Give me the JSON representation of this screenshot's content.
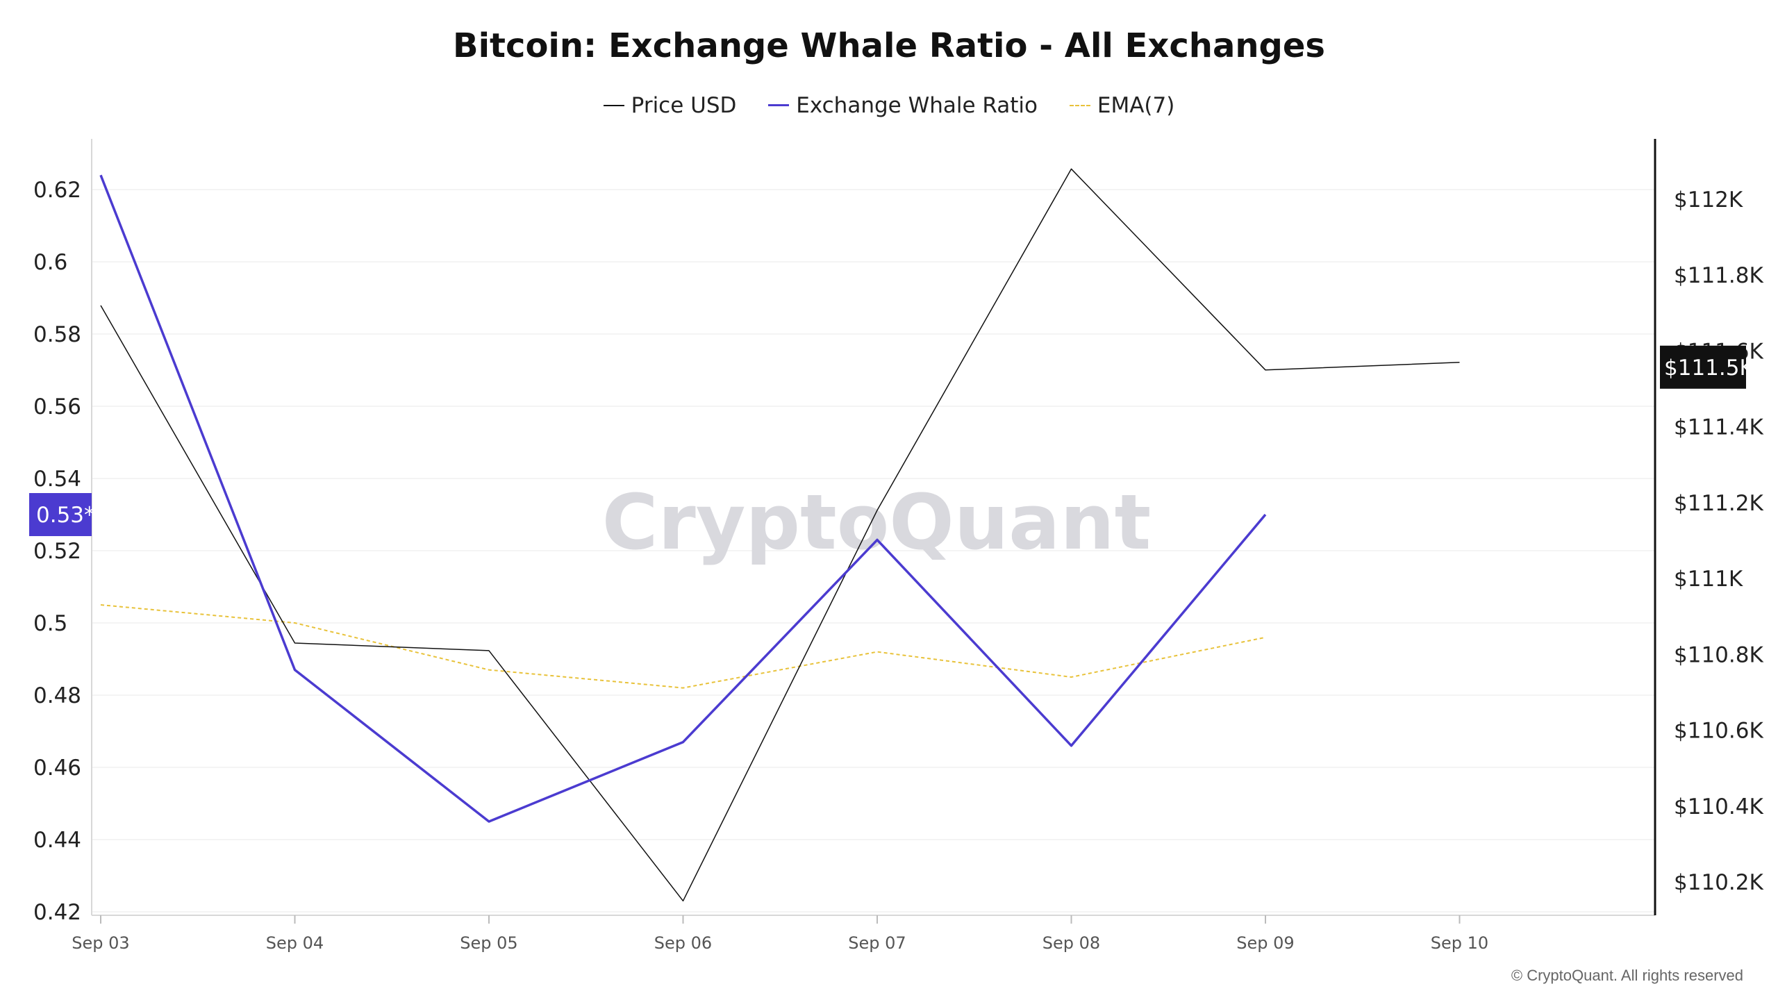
{
  "chart_data": {
    "type": "line",
    "title": "Bitcoin: Exchange Whale Ratio - All Exchanges",
    "categories": [
      "Sep 03",
      "Sep 04",
      "Sep 05",
      "Sep 06",
      "Sep 07",
      "Sep 08",
      "Sep 09",
      "Sep 10"
    ],
    "left_axis": {
      "ticks": [
        "0.62",
        "0.6",
        "0.58",
        "0.56",
        "0.54",
        "0.52",
        "0.5",
        "0.48",
        "0.46",
        "0.44",
        "0.42"
      ],
      "range": [
        0.42,
        0.633
      ]
    },
    "right_axis": {
      "ticks": [
        "$112K",
        "$111.8K",
        "$111.6K",
        "$111.4K",
        "$111.2K",
        "$111K",
        "$110.8K",
        "$110.6K",
        "$110.4K",
        "$110.2K"
      ],
      "range": [
        110152,
        112169
      ]
    },
    "series": [
      {
        "name": "Price USD",
        "axis": "right",
        "color": "#111111",
        "values": [
          111720,
          110830,
          110810,
          110150,
          111180,
          112080,
          111550,
          111570
        ]
      },
      {
        "name": "Exchange Whale Ratio",
        "axis": "left",
        "color": "#4b3bd0",
        "values": [
          0.624,
          0.487,
          0.445,
          0.467,
          0.523,
          0.466,
          0.53,
          null
        ]
      },
      {
        "name": "EMA(7)",
        "axis": "left",
        "color": "#e8c23a",
        "values": [
          0.505,
          0.5,
          0.487,
          0.482,
          0.492,
          0.485,
          0.496,
          null
        ]
      }
    ],
    "current_labels": {
      "ratio": "0.53*",
      "price": "$111.5K"
    },
    "watermark": "CryptoQuant",
    "copyright": "© CryptoQuant. All rights reserved",
    "grid": true,
    "legend_position": "top-center"
  }
}
